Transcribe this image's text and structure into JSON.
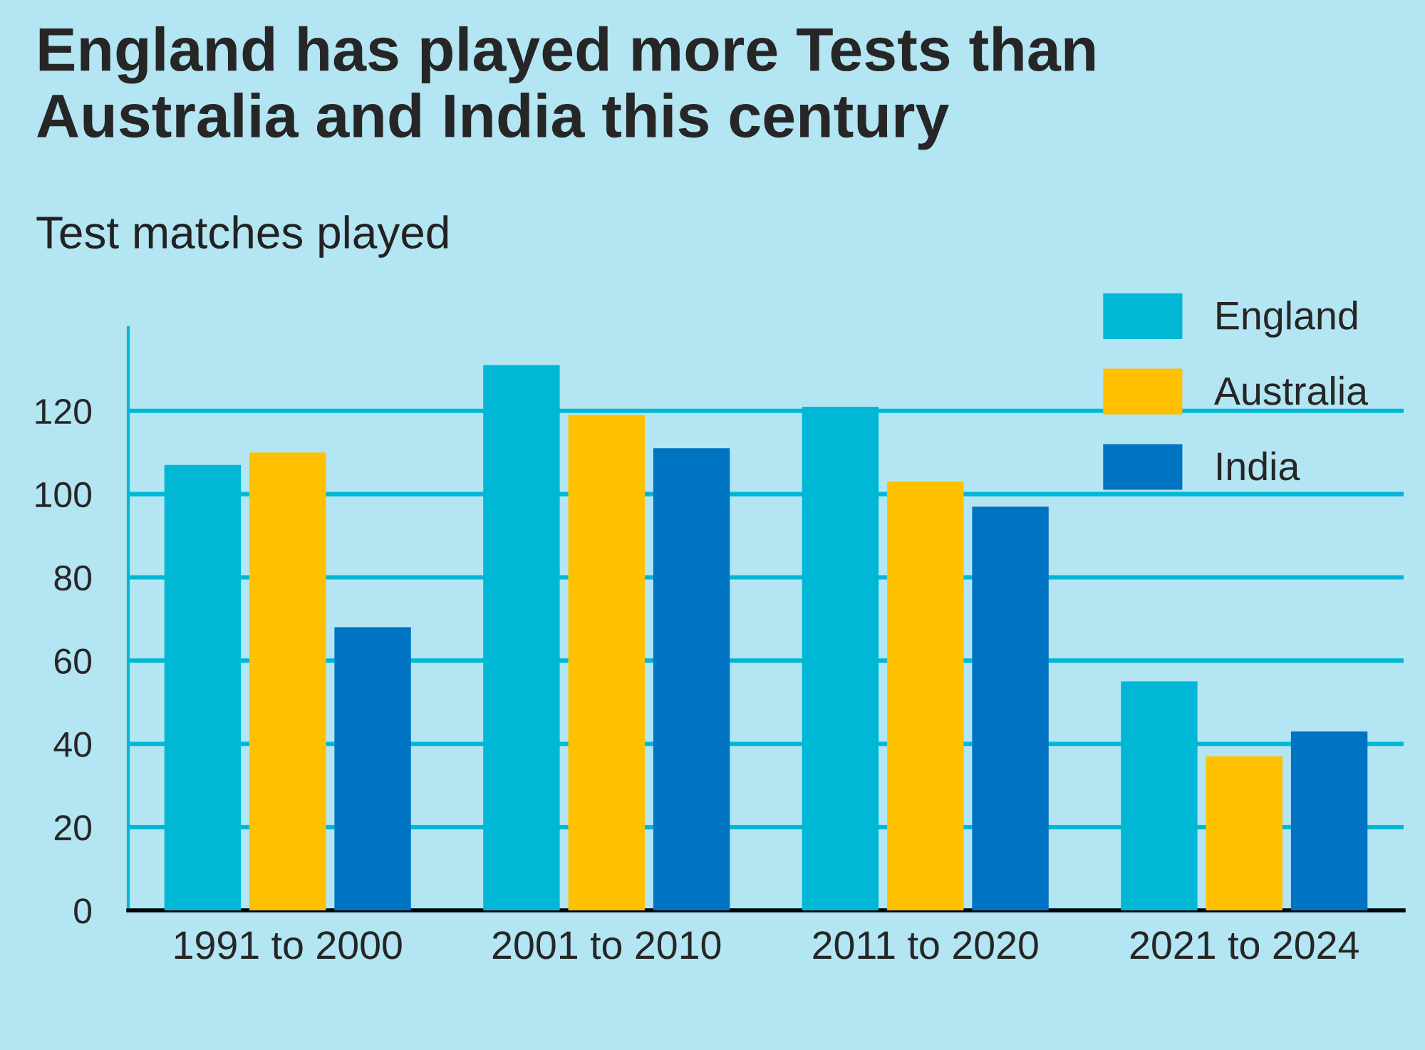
{
  "chart_data": {
    "type": "bar",
    "title": "England has played more Tests than\nAustralia and India this century",
    "subtitle": "Test matches played",
    "categories": [
      "1991 to 2000",
      "2001 to 2010",
      "2011 to 2020",
      "2021 to 2024"
    ],
    "series": [
      {
        "name": "England",
        "color": "#00b8d6",
        "values": [
          107,
          131,
          121,
          55
        ]
      },
      {
        "name": "Australia",
        "color": "#ffc000",
        "values": [
          110,
          119,
          103,
          37
        ]
      },
      {
        "name": "India",
        "color": "#0073c2",
        "values": [
          68,
          111,
          97,
          43
        ]
      }
    ],
    "ylim": [
      0,
      140
    ],
    "yticks": [
      0,
      20,
      40,
      60,
      80,
      100,
      120
    ],
    "grid": "y",
    "legend": "top right"
  }
}
